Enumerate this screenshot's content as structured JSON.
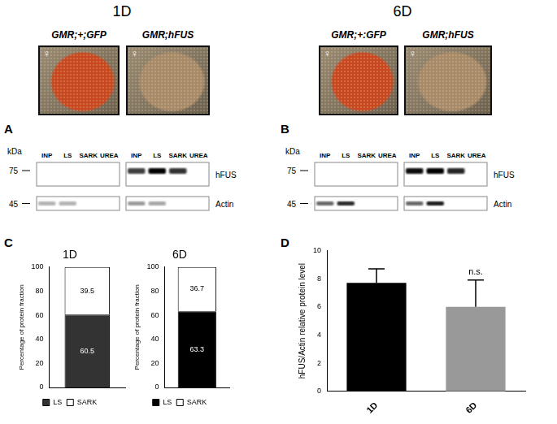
{
  "headings": [
    "1D",
    "6D"
  ],
  "photos": [
    {
      "caption": "GMR;+;GFP",
      "symbol": "♀",
      "color": "#c8481e"
    },
    {
      "caption": "GMR;hFUS",
      "symbol": "♀",
      "color": "#a98a66"
    },
    {
      "caption": "GMR;+:GFP",
      "symbol": "♀",
      "color": "#c8481e"
    },
    {
      "caption": "GMR;hFUS",
      "symbol": "♀",
      "color": "#a98a66"
    }
  ],
  "panel_labels": [
    "A",
    "B",
    "C",
    "D"
  ],
  "blot_panels": [
    {
      "kda_label": "kDa",
      "markers": [
        75,
        45
      ],
      "row_labels": [
        "hFUS",
        "Actin"
      ],
      "blots": [
        {
          "lanes": [
            "INP",
            "LS",
            "SARK",
            "UREA"
          ],
          "rows": [
            [
              0,
              0,
              0,
              0
            ],
            [
              0.3,
              0.3,
              0,
              0
            ]
          ]
        },
        {
          "lanes": [
            "INP",
            "LS",
            "SARK",
            "UREA"
          ],
          "rows": [
            [
              0.75,
              1,
              0.8,
              0
            ],
            [
              0.4,
              0.35,
              0,
              0
            ]
          ]
        }
      ]
    },
    {
      "kda_label": "kDa",
      "markers": [
        75,
        45
      ],
      "row_labels": [
        "hFUS",
        "Actin"
      ],
      "blots": [
        {
          "lanes": [
            "INP",
            "LS",
            "SARK",
            "UREA"
          ],
          "rows": [
            [
              0,
              0,
              0,
              0
            ],
            [
              0.6,
              0.85,
              0,
              0
            ]
          ]
        },
        {
          "lanes": [
            "INP",
            "LS",
            "SARK",
            "UREA"
          ],
          "rows": [
            [
              0.95,
              1,
              0.85,
              0
            ],
            [
              0.6,
              0.9,
              0,
              0
            ]
          ]
        }
      ]
    }
  ],
  "chart_data": [
    {
      "type": "bar",
      "title": "1D",
      "categories": [
        null
      ],
      "series": [
        {
          "name": "LS",
          "color": "#333333",
          "values": [
            60.5
          ]
        },
        {
          "name": "SARK",
          "color": "#ffffff",
          "values": [
            39.5
          ]
        }
      ],
      "stacked": true,
      "data_labels": true,
      "ylabel": "Percentage of protein fraction",
      "ylim": [
        0,
        100
      ],
      "yticks": [
        0,
        20,
        40,
        60,
        80,
        100
      ],
      "grid": false,
      "legend": "bottom",
      "tick_labels": "y"
    },
    {
      "type": "bar",
      "title": "6D",
      "categories": [
        null
      ],
      "series": [
        {
          "name": "LS",
          "color": "#000000",
          "values": [
            63.3
          ]
        },
        {
          "name": "SARK",
          "color": "#ffffff",
          "values": [
            36.7
          ]
        }
      ],
      "stacked": true,
      "data_labels": true,
      "ylabel": "Percentage of protein fraction",
      "ylim": [
        0,
        100
      ],
      "yticks": [
        0,
        20,
        40,
        60,
        80,
        100
      ],
      "grid": false,
      "legend": "bottom",
      "tick_labels": "y"
    },
    {
      "type": "bar",
      "categories": [
        "1D",
        "6D"
      ],
      "values": [
        7.7,
        6.0
      ],
      "errors": [
        1.0,
        1.9
      ],
      "colors": [
        "#000000",
        "#999999"
      ],
      "ylabel": "hFUS/Actin relative protein level",
      "ylim": [
        0,
        10
      ],
      "yticks": [
        0,
        2,
        4,
        6,
        8,
        10
      ],
      "grid": false,
      "annotations": [
        {
          "text": "n.s.",
          "category": "6D"
        }
      ]
    }
  ]
}
